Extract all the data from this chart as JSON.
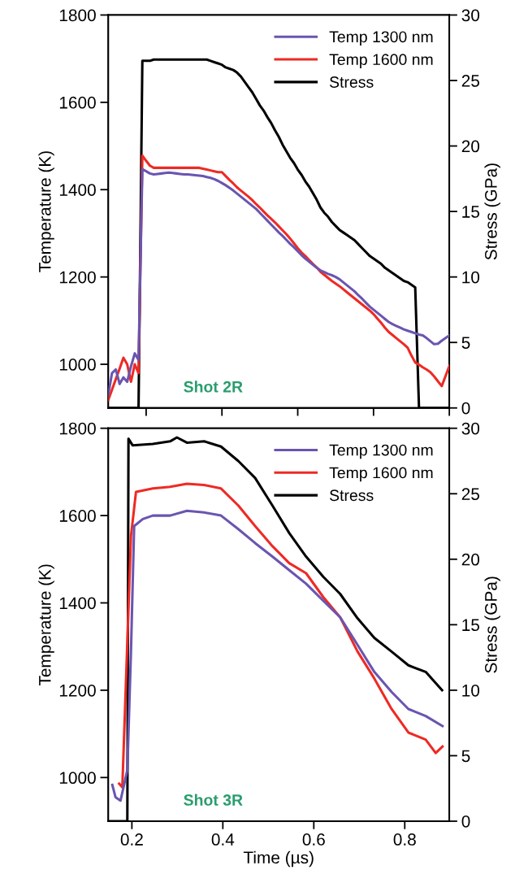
{
  "chart_data": [
    {
      "type": "line",
      "ylabel": "Temperature (K)",
      "y2label": "Stress (GPa)",
      "categories": [
        null,
        null,
        null,
        null,
        null,
        null,
        null,
        null,
        null,
        null,
        null,
        null,
        null,
        null,
        null,
        null,
        null,
        null,
        null,
        null,
        null,
        null,
        null,
        null,
        null,
        null,
        null,
        null,
        null,
        null,
        null,
        null,
        null,
        null,
        null,
        null,
        null,
        null,
        null,
        null,
        null,
        null,
        null,
        null,
        null,
        null,
        null,
        null,
        null,
        null,
        null,
        null,
        null,
        null,
        null,
        null,
        null,
        null,
        null,
        null,
        null,
        null,
        null,
        null,
        null,
        null,
        null,
        null,
        null,
        null,
        null,
        null,
        null,
        null,
        null,
        null,
        null,
        null,
        null,
        null,
        null,
        null,
        null,
        null,
        null,
        null,
        null,
        null,
        null,
        null,
        null
      ],
      "ylim": [
        900,
        1800
      ],
      "yticks": [
        1000,
        1200,
        1400,
        1600,
        1800
      ],
      "y2lim": [
        0,
        30
      ],
      "y2ticks": [
        0,
        5,
        10,
        15,
        20,
        25,
        30
      ],
      "legend": "top right",
      "annotations": [
        "Shot 2R"
      ],
      "series": [
        {
          "name": "Temp 1300 nm",
          "color": "#6a55b0",
          "values": [
            930,
            980,
            988,
            955,
            970,
            960,
            995,
            1025,
            1010,
            1447,
            1442,
            1437,
            1435,
            1436,
            1437,
            1438,
            1439,
            1438,
            1437,
            1436,
            1435,
            1435,
            1434,
            1433,
            1432,
            1431,
            1429,
            1427,
            1424,
            1420,
            1415,
            1410,
            1404,
            1398,
            1391,
            1384,
            1377,
            1370,
            1363,
            1356,
            1347,
            1338,
            1329,
            1320,
            1311,
            1302,
            1294,
            1285,
            1276,
            1268,
            1259,
            1250,
            1242,
            1235,
            1228,
            1221,
            1215,
            1211,
            1207,
            1204,
            1200,
            1195,
            1188,
            1181,
            1174,
            1167,
            1158,
            1150,
            1141,
            1132,
            1125,
            1118,
            1111,
            1104,
            1097,
            1092,
            1088,
            1084,
            1080,
            1077,
            1074,
            1071,
            1068,
            1066,
            1060,
            1053,
            1046,
            1047,
            1054,
            1060,
            1066
          ]
        },
        {
          "name": "Temp 1600 nm",
          "color": "#ee2a24",
          "values": [
            918,
            942,
            966,
            990,
            1015,
            1000,
            960,
            1000,
            980,
            1478,
            1466,
            1455,
            1450,
            1450,
            1450,
            1450,
            1450,
            1450,
            1450,
            1450,
            1450,
            1450,
            1450,
            1450,
            1450,
            1448,
            1446,
            1444,
            1442,
            1440,
            1440,
            1431,
            1422,
            1414,
            1405,
            1398,
            1391,
            1384,
            1376,
            1367,
            1359,
            1350,
            1341,
            1333,
            1325,
            1316,
            1307,
            1298,
            1288,
            1277,
            1266,
            1256,
            1248,
            1239,
            1230,
            1222,
            1212,
            1205,
            1198,
            1191,
            1185,
            1179,
            1172,
            1165,
            1158,
            1151,
            1144,
            1137,
            1130,
            1123,
            1115,
            1105,
            1095,
            1084,
            1074,
            1067,
            1060,
            1053,
            1046,
            1038,
            1020,
            1004,
            999,
            993,
            988,
            982,
            972,
            961,
            950,
            973,
            996
          ]
        },
        {
          "name": "Stress",
          "color": "#000000",
          "axis": "y2",
          "values": [
            0,
            0,
            0,
            0,
            0,
            0,
            0,
            0,
            0,
            26.5,
            26.5,
            26.5,
            26.6,
            26.6,
            26.6,
            26.6,
            26.6,
            26.6,
            26.6,
            26.6,
            26.6,
            26.6,
            26.6,
            26.6,
            26.6,
            26.6,
            26.6,
            26.5,
            26.4,
            26.3,
            26.2,
            26.0,
            25.9,
            25.8,
            25.6,
            25.3,
            24.9,
            24.5,
            24.1,
            23.6,
            23.1,
            22.7,
            22.2,
            21.75,
            21.2,
            20.7,
            20.1,
            19.6,
            19.1,
            18.7,
            18.2,
            17.8,
            17.3,
            16.9,
            16.4,
            15.9,
            15.3,
            14.9,
            14.6,
            14.2,
            13.9,
            13.6,
            13.4,
            13.2,
            13.0,
            12.8,
            12.5,
            12.2,
            11.9,
            11.6,
            11.4,
            11.2,
            11.0,
            10.7,
            10.5,
            10.3,
            10.1,
            9.9,
            9.7,
            9.6,
            9.4,
            9.2,
            0,
            0,
            0,
            0,
            0,
            0,
            0,
            0,
            0
          ]
        }
      ]
    },
    {
      "type": "line",
      "xlabel": "Time (µs)",
      "ylabel": "Temperature (K)",
      "y2label": "Stress (GPa)",
      "xlim": [
        0.148,
        0.898
      ],
      "xticks": [
        0.2,
        0.4,
        0.6,
        0.8
      ],
      "ylim": [
        900,
        1800
      ],
      "yticks": [
        1000,
        1200,
        1400,
        1600,
        1800
      ],
      "y2lim": [
        0,
        30
      ],
      "y2ticks": [
        0,
        5,
        10,
        15,
        20,
        25,
        30
      ],
      "legend": "top right",
      "annotations": [
        "Shot 3R"
      ],
      "series": [
        {
          "name": "Temp 1300 nm",
          "color": "#6a55b0",
          "x": [
            0.157,
            0.164,
            0.175,
            0.19,
            0.198,
            0.205,
            0.224,
            0.246,
            0.284,
            0.321,
            0.359,
            0.396,
            0.434,
            0.471,
            0.509,
            0.546,
            0.583,
            0.621,
            0.658,
            0.696,
            0.733,
            0.771,
            0.808,
            0.846,
            0.883
          ],
          "values": [
            983,
            955,
            947,
            1017,
            1289,
            1576,
            1592,
            1600,
            1600,
            1611,
            1607,
            1600,
            1569,
            1537,
            1506,
            1475,
            1444,
            1405,
            1367,
            1304,
            1242,
            1196,
            1157,
            1141,
            1118
          ]
        },
        {
          "name": "Temp 1600 nm",
          "color": "#ee2a24",
          "x": [
            0.172,
            0.179,
            0.198,
            0.209,
            0.246,
            0.284,
            0.321,
            0.359,
            0.396,
            0.434,
            0.471,
            0.509,
            0.546,
            0.583,
            0.621,
            0.658,
            0.696,
            0.733,
            0.771,
            0.808,
            0.846,
            0.868,
            0.883
          ],
          "values": [
            986,
            978,
            1553,
            1654,
            1662,
            1666,
            1673,
            1670,
            1662,
            1623,
            1576,
            1530,
            1491,
            1468,
            1413,
            1367,
            1289,
            1227,
            1157,
            1103,
            1087,
            1056,
            1071
          ]
        },
        {
          "name": "Stress",
          "color": "#000000",
          "axis": "y2",
          "x": [
            0.149,
            0.19,
            0.1925,
            0.2015,
            0.246,
            0.284,
            0.299,
            0.321,
            0.359,
            0.396,
            0.434,
            0.471,
            0.509,
            0.546,
            0.583,
            0.621,
            0.658,
            0.696,
            0.733,
            0.771,
            0.808,
            0.846,
            0.882
          ],
          "values": [
            0,
            0,
            29.2,
            28.7,
            28.8,
            29.0,
            29.3,
            28.9,
            29.0,
            28.6,
            27.5,
            26.2,
            24.1,
            22.0,
            20.2,
            18.65,
            17.35,
            15.5,
            14.0,
            12.95,
            11.9,
            11.4,
            10.0
          ]
        }
      ]
    }
  ]
}
